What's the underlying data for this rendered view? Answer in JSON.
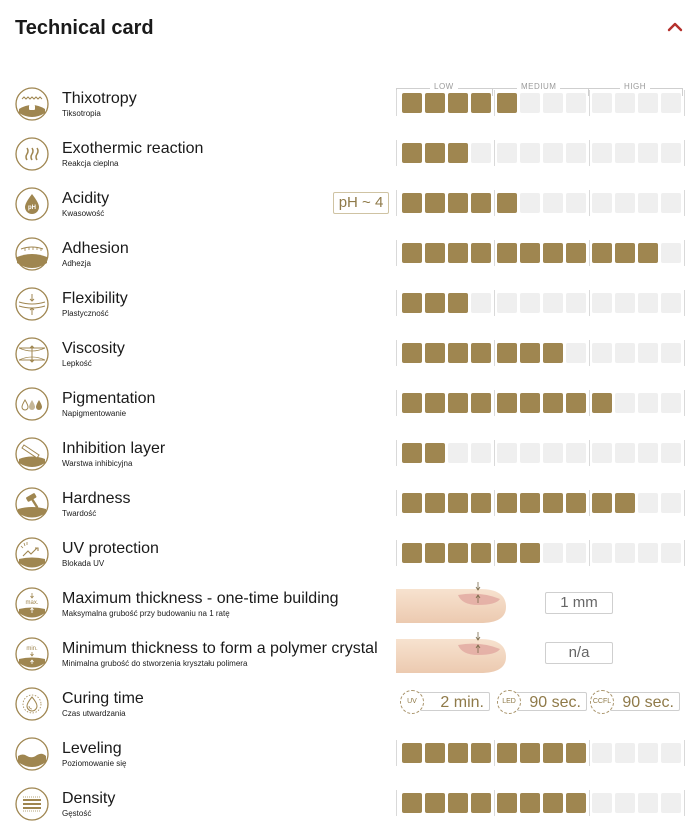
{
  "header": {
    "title": "Technical card"
  },
  "scale": {
    "low": "LOW",
    "medium": "MEDIUM",
    "high": "HIGH",
    "total_cells": 12
  },
  "colors": {
    "filled": "#9f8650",
    "empty": "#efefef",
    "accent": "#b5302c"
  },
  "properties": [
    {
      "icon": "thixotropy-icon",
      "name": "Thixotropy",
      "sub": "Tiksotropia",
      "type": "bars",
      "level": 5
    },
    {
      "icon": "heat-icon",
      "name": "Exothermic reaction",
      "sub": "Reakcja cieplna",
      "type": "bars",
      "level": 3
    },
    {
      "icon": "ph-drop-icon",
      "name": "Acidity",
      "sub": "Kwasowość",
      "type": "bars",
      "level": 5,
      "badge": "pH ~ 4"
    },
    {
      "icon": "adhesion-icon",
      "name": "Adhesion",
      "sub": "Adhezja",
      "type": "bars",
      "level": 11
    },
    {
      "icon": "flexibility-icon",
      "name": "Flexibility",
      "sub": "Plastyczność",
      "type": "bars",
      "level": 3
    },
    {
      "icon": "viscosity-icon",
      "name": "Viscosity",
      "sub": "Lepkość",
      "type": "bars",
      "level": 7
    },
    {
      "icon": "pigment-drops-icon",
      "name": "Pigmentation",
      "sub": "Napigmentowanie",
      "type": "bars",
      "level": 9
    },
    {
      "icon": "inhibition-icon",
      "name": "Inhibition layer",
      "sub": "Warstwa inhibicyjna",
      "type": "bars",
      "level": 2
    },
    {
      "icon": "hammer-icon",
      "name": "Hardness",
      "sub": "Twardość",
      "type": "bars",
      "level": 10
    },
    {
      "icon": "uv-icon",
      "name": "UV protection",
      "sub": "Blokada UV",
      "type": "bars",
      "level": 6
    },
    {
      "icon": "max-thickness-icon",
      "name": "Maximum thickness - one-time building",
      "sub": "Maksymalna grubość przy budowaniu na 1 ratę",
      "type": "thickness",
      "value": "1 mm",
      "icon_label": "max."
    },
    {
      "icon": "min-thickness-icon",
      "name": "Minimum thickness to form a polymer crystal",
      "sub": "Minimalna grubość do stworzenia kryształu polimera",
      "type": "thickness",
      "value": "n/a",
      "icon_label": "min."
    },
    {
      "icon": "curing-icon",
      "name": "Curing time",
      "sub": "Czas utwardzania",
      "type": "curing",
      "lamps": [
        {
          "lamp": "UV",
          "time": "2 min."
        },
        {
          "lamp": "LED",
          "time": "90 sec."
        },
        {
          "lamp": "CCFL",
          "time": "90 sec."
        }
      ]
    },
    {
      "icon": "leveling-icon",
      "name": "Leveling",
      "sub": "Poziomowanie się",
      "type": "bars",
      "level": 8
    },
    {
      "icon": "density-icon",
      "name": "Density",
      "sub": "Gęstość",
      "type": "bars",
      "level": 8
    }
  ]
}
